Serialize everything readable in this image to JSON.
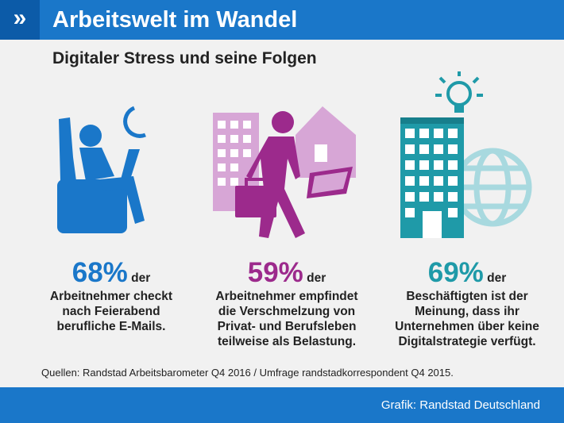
{
  "header": {
    "chevron": "»",
    "title": "Arbeitswelt im Wandel"
  },
  "subtitle": "Digitaler Stress und seine Folgen",
  "stats": [
    {
      "pct": "68%",
      "der": "der",
      "lines": [
        "Arbeitnehmer checkt",
        "nach Feierabend",
        "berufliche E-Mails."
      ],
      "color": "#1a77c9",
      "icon": "person-laptop-night-icon"
    },
    {
      "pct": "59%",
      "der": "der",
      "lines": [
        "Arbeitnehmer empfindet",
        "die Verschmelzung von",
        "Privat- und Berufsleben",
        "teilweise als Belastung."
      ],
      "color": "#9c2a8c",
      "icon": "commuter-office-home-icon"
    },
    {
      "pct": "69%",
      "der": "der",
      "lines": [
        "Beschäftigten ist der",
        "Meinung, dass ihr",
        "Unternehmen über keine",
        "Digitalstrategie verfügt."
      ],
      "color": "#1f9aa8",
      "icon": "building-globe-idea-icon"
    }
  ],
  "source": "Quellen: Randstad Arbeitsbarometer Q4 2016 / Umfrage randstadkorrespondent Q4 2015.",
  "credit": "Grafik: Randstad Deutschland",
  "colors": {
    "header": "#1a77c9",
    "header_dark": "#0c5ba8",
    "blue": "#1a77c9",
    "purple": "#9c2a8c",
    "light_purple": "#d7a6d6",
    "teal": "#1f9aa8",
    "light_teal": "#a8d9df"
  }
}
